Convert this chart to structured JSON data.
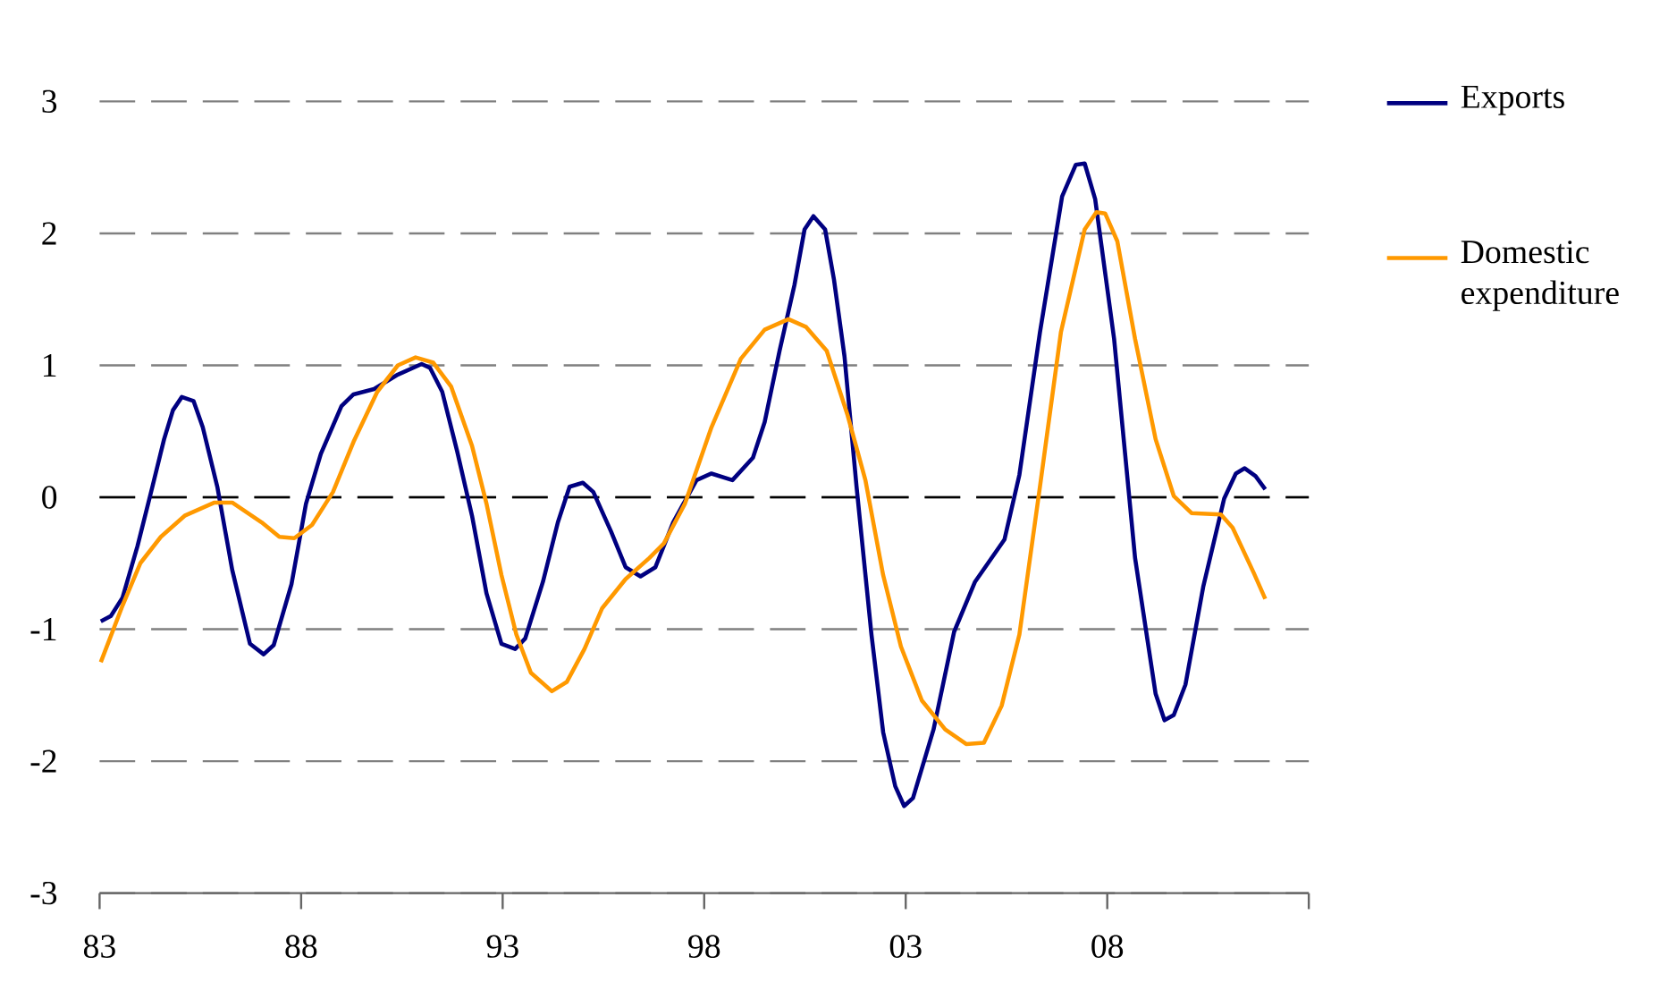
{
  "chart_data": {
    "type": "line",
    "xlim": [
      1983,
      2013
    ],
    "ylim": [
      -3,
      3
    ],
    "xticks": [
      {
        "value": 1983,
        "label": "83"
      },
      {
        "value": 1988,
        "label": "88"
      },
      {
        "value": 1993,
        "label": "93"
      },
      {
        "value": 1998,
        "label": "98"
      },
      {
        "value": 2003,
        "label": "03"
      },
      {
        "value": 2008,
        "label": "08"
      },
      {
        "value": 2013,
        "label": null
      }
    ],
    "yticks": [
      -3,
      -2,
      -1,
      0,
      1,
      2,
      3
    ],
    "grid": "y",
    "legend": "right",
    "line_style": "solid",
    "marker": "none",
    "ref_lines": [
      {
        "axis": "y",
        "value": 0,
        "color": "#000000",
        "line_style": "dashed"
      }
    ],
    "series": [
      {
        "name": "Exports",
        "color": "#000080",
        "x": [
          1983.03,
          1983.28,
          1983.57,
          1983.94,
          1984.31,
          1984.6,
          1984.82,
          1985.04,
          1985.33,
          1985.56,
          1985.92,
          1986.29,
          1986.73,
          1987.07,
          1987.32,
          1987.76,
          1988.12,
          1988.49,
          1989.0,
          1989.3,
          1989.81,
          1990.4,
          1990.99,
          1991.2,
          1991.5,
          1991.87,
          1992.24,
          1992.6,
          1992.97,
          1993.31,
          1993.56,
          1994.0,
          1994.37,
          1994.66,
          1994.99,
          1995.25,
          1995.69,
          1996.05,
          1996.42,
          1996.79,
          1997.23,
          1997.81,
          1998.18,
          1998.7,
          1999.21,
          1999.5,
          1999.87,
          2000.24,
          2000.49,
          2000.71,
          2001.0,
          2001.22,
          2001.48,
          2001.78,
          2002.15,
          2002.44,
          2002.74,
          2002.96,
          2003.18,
          2003.69,
          2004.2,
          2004.72,
          2005.45,
          2005.82,
          2006.33,
          2006.88,
          2007.22,
          2007.44,
          2007.7,
          2008.17,
          2008.69,
          2009.2,
          2009.42,
          2009.65,
          2009.94,
          2010.38,
          2010.9,
          2011.19,
          2011.41,
          2011.68,
          2011.92
        ],
        "values": [
          -0.94,
          -0.9,
          -0.76,
          -0.37,
          0.08,
          0.44,
          0.66,
          0.76,
          0.73,
          0.53,
          0.08,
          -0.55,
          -1.11,
          -1.19,
          -1.12,
          -0.66,
          -0.05,
          0.33,
          0.69,
          0.78,
          0.82,
          0.93,
          1.01,
          0.98,
          0.8,
          0.35,
          -0.14,
          -0.73,
          -1.11,
          -1.15,
          -1.07,
          -0.64,
          -0.19,
          0.08,
          0.11,
          0.04,
          -0.26,
          -0.53,
          -0.6,
          -0.53,
          -0.19,
          0.13,
          0.18,
          0.13,
          0.3,
          0.57,
          1.11,
          1.61,
          2.03,
          2.13,
          2.03,
          1.65,
          1.07,
          0.08,
          -1.04,
          -1.78,
          -2.19,
          -2.34,
          -2.28,
          -1.76,
          -1.02,
          -0.64,
          -0.32,
          0.17,
          1.25,
          2.28,
          2.52,
          2.53,
          2.26,
          1.2,
          -0.46,
          -1.49,
          -1.69,
          -1.65,
          -1.42,
          -0.68,
          -0.01,
          0.18,
          0.22,
          0.16,
          0.06
        ]
      },
      {
        "name": "Domestic expenditure",
        "color": "#ff9900",
        "x": [
          1983.03,
          1983.57,
          1984.01,
          1984.52,
          1985.11,
          1985.85,
          1986.29,
          1987.02,
          1987.46,
          1987.83,
          1988.27,
          1988.79,
          1989.3,
          1989.89,
          1990.4,
          1990.84,
          1991.28,
          1991.72,
          1992.24,
          1992.6,
          1992.97,
          1993.34,
          1993.7,
          1994.22,
          1994.59,
          1995.03,
          1995.47,
          1996.05,
          1996.64,
          1997.0,
          1997.52,
          1998.18,
          1998.91,
          1999.5,
          2000.09,
          2000.53,
          2001.04,
          2001.56,
          2002.0,
          2002.44,
          2002.88,
          2003.4,
          2003.98,
          2004.5,
          2004.94,
          2005.38,
          2005.82,
          2006.33,
          2006.85,
          2007.44,
          2007.73,
          2007.95,
          2008.25,
          2008.69,
          2009.2,
          2009.65,
          2010.09,
          2010.82,
          2011.11,
          2011.63,
          2011.92
        ],
        "values": [
          -1.25,
          -0.82,
          -0.5,
          -0.3,
          -0.14,
          -0.04,
          -0.04,
          -0.19,
          -0.3,
          -0.31,
          -0.21,
          0.04,
          0.42,
          0.8,
          1.0,
          1.06,
          1.02,
          0.84,
          0.39,
          -0.05,
          -0.59,
          -1.04,
          -1.33,
          -1.47,
          -1.4,
          -1.15,
          -0.84,
          -0.62,
          -0.46,
          -0.35,
          -0.05,
          0.53,
          1.05,
          1.27,
          1.35,
          1.29,
          1.11,
          0.62,
          0.13,
          -0.59,
          -1.13,
          -1.54,
          -1.76,
          -1.87,
          -1.86,
          -1.58,
          -1.04,
          0.08,
          1.25,
          2.03,
          2.16,
          2.15,
          1.94,
          1.2,
          0.44,
          0.01,
          -0.12,
          -0.13,
          -0.23,
          -0.57,
          -0.77
        ]
      }
    ]
  }
}
